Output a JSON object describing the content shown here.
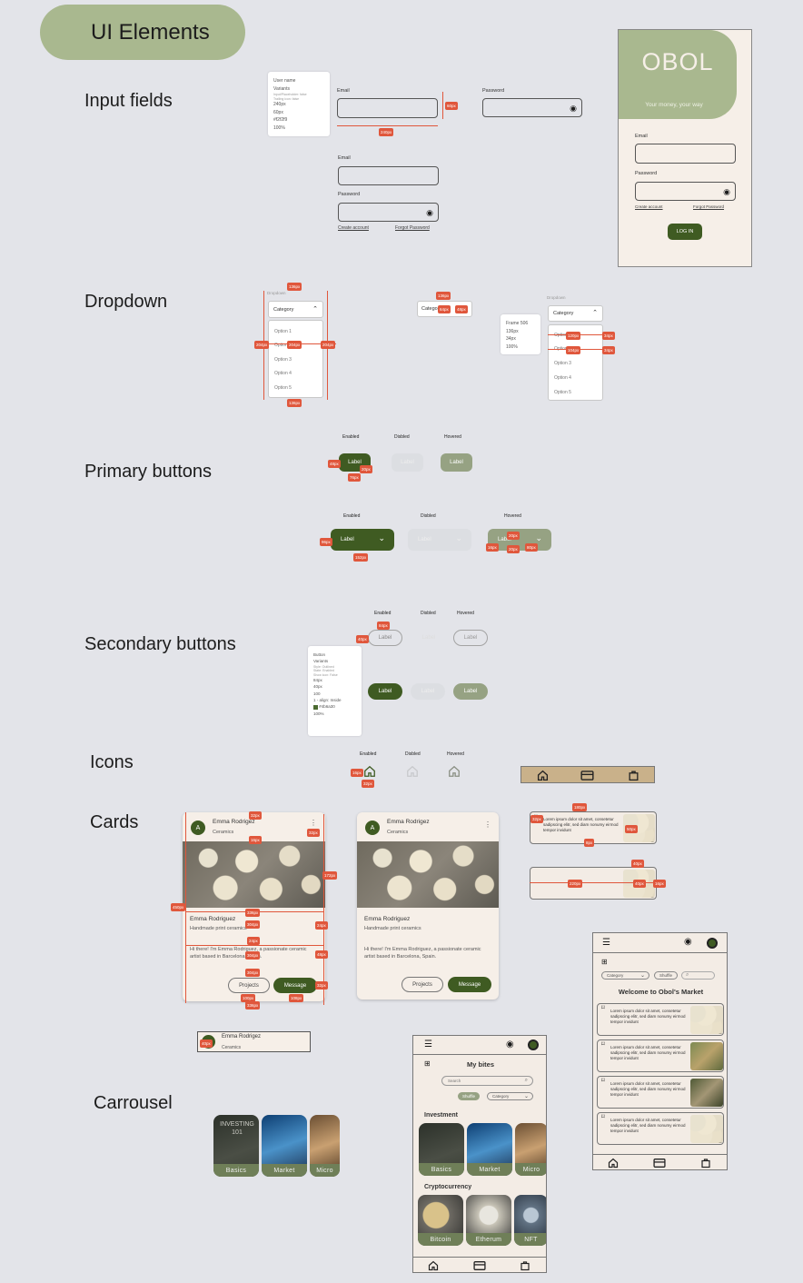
{
  "page_title": "UI Elements",
  "sections": {
    "input_fields": "Input fields",
    "dropdown": "Dropdown",
    "primary_buttons": "Primary buttons",
    "secondary_buttons": "Secondary buttons",
    "icons": "Icons",
    "cards": "Cards",
    "carrousel": "Carrousel"
  },
  "input_props": [
    "User name",
    "Variants",
    "Input/Placeholder: false",
    "Trailing icon: false",
    "240px",
    "60px",
    "#f2f2f9",
    "100%"
  ],
  "inputs": {
    "email_label": "Email",
    "password_label": "Password",
    "create_account": "Create account",
    "forgot_password": "Forgot Password",
    "width_badge": "240px",
    "height_badge": "60px"
  },
  "login_screen": {
    "logo": "OBOL",
    "tagline": "Your money, your way",
    "email_label": "Email",
    "password_label": "Password",
    "create_account": "Create account",
    "forgot_password": "Forgot Password",
    "login_button": "LOG IN"
  },
  "dropdown": {
    "small_label": "Dropdown",
    "placeholder": "Category",
    "options": [
      "Option 1",
      "Option 2",
      "Option 3",
      "Option 4",
      "Option 5"
    ],
    "badges": [
      "136px",
      "204px",
      "204px",
      "204px",
      "136px"
    ],
    "closed_label": "Catego",
    "closed_badges": [
      "136px",
      "64px",
      "48px"
    ],
    "props": [
      "Frame 506",
      "136px",
      "34px",
      "100%"
    ],
    "right_badges": [
      "120px",
      "34px",
      "104px",
      "34px"
    ]
  },
  "state_labels": {
    "enabled": "Enabled",
    "disabled": "Disbled",
    "hovered": "Hovered"
  },
  "primary": {
    "label": "Label",
    "badges_small": [
      "48px",
      "20px",
      "76px"
    ],
    "badges_large": [
      "96px",
      "152px",
      "20px",
      "16px",
      "20px",
      "80px"
    ]
  },
  "secondary": {
    "label": "Label",
    "badges": [
      "84px",
      "40px"
    ],
    "props": [
      "Button",
      "Variants",
      "Style: Outlined",
      "State: Enabled",
      "Show icon: False",
      "84px",
      "40px",
      "100",
      "1 - align: Inside",
      "#4b6a30",
      "100%"
    ]
  },
  "icons": {
    "badges": [
      "16px",
      "32px"
    ],
    "bar": [
      "home-icon",
      "card-icon",
      "bag-icon"
    ]
  },
  "cards": {
    "name": "Emma Rodrigez",
    "category": "Ceramics",
    "avatar_letter": "A",
    "title": "Emma Rodriguez",
    "subtitle": "Handmade print ceramics",
    "body": "Hi there! I'm Emma Rodriguez, a passionate ceramic artist based in Barcelona, Spain.",
    "projects_button": "Projects",
    "message_button": "Message",
    "badges": [
      "32px",
      "32px",
      "16px",
      "172px",
      "450px",
      "336px",
      "304px",
      "24px",
      "24px",
      "304px",
      "48px",
      "304px",
      "100px",
      "108px",
      "336px",
      "32px"
    ],
    "lockup_name": "Emma Rodrigez",
    "lockup_category": "Ceramics",
    "lockup_badge": "40px"
  },
  "list_card": {
    "text": "Lorem ipsum dolor sit amet, consetetur sadipscing elitr, sed diam nonumy eirmod tempor invidunt",
    "badges": [
      "180px",
      "32px",
      "50px",
      "8px",
      "220px",
      "40px",
      "40px",
      "16px"
    ]
  },
  "carrousel": {
    "tiles": [
      "Basics",
      "Market",
      "Micro"
    ],
    "investing_text": "INVESTING 101"
  },
  "phone_mybites": {
    "title": "My bites",
    "search_placeholder": "Search",
    "shuffle": "Shuffle",
    "category": "Category",
    "investment_heading": "Investment",
    "investment_tiles": [
      "Basics",
      "Market",
      "Micro"
    ],
    "crypto_heading": "Cryptocurrency",
    "crypto_tiles": [
      "Bitcoin",
      "Etherum",
      "NFT"
    ]
  },
  "phone_market": {
    "category": "Category",
    "shuffle": "Shuffle",
    "title": "Welcome to Obol's Market",
    "item_text": "Lorem ipsum dolor sit amet, consetetur sadipscing elitr, sed diam nonumy eirmod tempor invidunt"
  },
  "colors": {
    "primary_green": "#3f5b22",
    "sage": "#a9b88f",
    "cream": "#f6efe8",
    "redline": "#e0573c",
    "background": "#e3e4e9"
  }
}
